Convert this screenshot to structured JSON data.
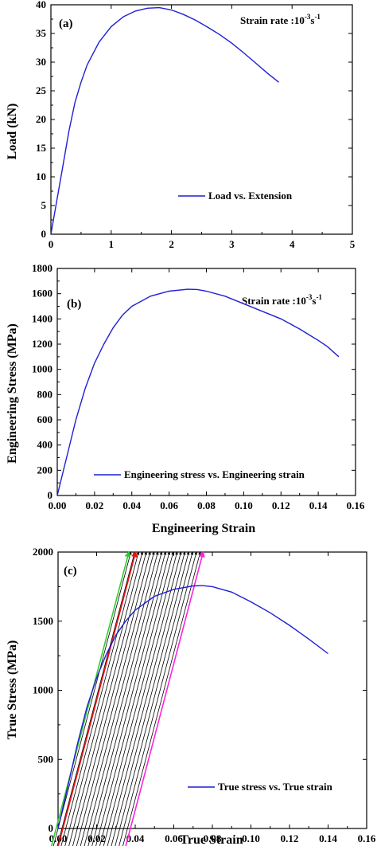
{
  "chart_data": [
    {
      "type": "line",
      "panel_label": "(a)",
      "annotation": "Strain rate :10",
      "annotation_exp": "-3",
      "annotation_unit": "s",
      "annotation_unit_exp": "-1",
      "xlabel": "",
      "ylabel": "Load (kN)",
      "xlim": [
        0,
        5
      ],
      "ylim": [
        0,
        40
      ],
      "xticks": [
        0,
        1,
        2,
        3,
        4,
        5
      ],
      "yticks": [
        0,
        5,
        10,
        15,
        20,
        25,
        30,
        35,
        40
      ],
      "legend_position": "lower-right",
      "series": [
        {
          "name": "Load vs. Extension",
          "color": "#1f1fd6",
          "x": [
            0,
            0.1,
            0.2,
            0.3,
            0.4,
            0.5,
            0.6,
            0.8,
            1.0,
            1.2,
            1.4,
            1.6,
            1.8,
            2.0,
            2.2,
            2.4,
            2.6,
            2.8,
            3.0,
            3.2,
            3.4,
            3.6,
            3.78
          ],
          "y": [
            0,
            6,
            12,
            18,
            23,
            26.5,
            29.5,
            33.5,
            36.2,
            37.9,
            38.9,
            39.4,
            39.5,
            39.1,
            38.3,
            37.3,
            36.1,
            34.8,
            33.3,
            31.6,
            29.8,
            28.0,
            26.5
          ]
        }
      ]
    },
    {
      "type": "line",
      "panel_label": "(b)",
      "annotation": "Strain rate :10",
      "annotation_exp": "-3",
      "annotation_unit": "s",
      "annotation_unit_exp": "-1",
      "xlabel": "Engineering Strain",
      "ylabel": "Engineering  Stress (MPa)",
      "xlim": [
        0,
        0.16
      ],
      "ylim": [
        0,
        1800
      ],
      "xticks": [
        "0.00",
        "0.02",
        "0.04",
        "0.06",
        "0.08",
        "0.10",
        "0.12",
        "0.14",
        "0.16"
      ],
      "yticks": [
        0,
        200,
        400,
        600,
        800,
        1000,
        1200,
        1400,
        1600,
        1800
      ],
      "legend_position": "lower-right",
      "series": [
        {
          "name": "Engineering stress vs. Engineering strain",
          "color": "#1f1fd6",
          "x": [
            0,
            0.005,
            0.01,
            0.015,
            0.02,
            0.025,
            0.03,
            0.035,
            0.04,
            0.05,
            0.06,
            0.07,
            0.075,
            0.08,
            0.09,
            0.1,
            0.11,
            0.12,
            0.13,
            0.14,
            0.145,
            0.151
          ],
          "y": [
            0,
            300,
            600,
            850,
            1050,
            1200,
            1330,
            1430,
            1500,
            1580,
            1620,
            1635,
            1633,
            1620,
            1580,
            1520,
            1460,
            1400,
            1320,
            1230,
            1180,
            1100
          ]
        }
      ]
    },
    {
      "type": "line",
      "panel_label": "(c)",
      "xlabel": "True Strain",
      "ylabel": "True Stress (MPa)",
      "xlim": [
        0,
        0.16
      ],
      "ylim": [
        0,
        2000
      ],
      "xticks": [
        "0.00",
        "0.02",
        "0.04",
        "0.06",
        "0.08",
        "0.10",
        "0.12",
        "0.14",
        "0.16"
      ],
      "yticks": [
        0,
        500,
        1000,
        1500,
        2000
      ],
      "legend_position": "lower-right",
      "series": [
        {
          "name": "True stress vs. True strain",
          "color": "#1f1fd6",
          "x": [
            0,
            0.005,
            0.01,
            0.015,
            0.02,
            0.025,
            0.03,
            0.035,
            0.04,
            0.05,
            0.06,
            0.07,
            0.075,
            0.08,
            0.09,
            0.1,
            0.11,
            0.12,
            0.13,
            0.14
          ],
          "y": [
            0,
            300,
            610,
            880,
            1090,
            1260,
            1400,
            1500,
            1580,
            1680,
            1730,
            1755,
            1757,
            1750,
            1710,
            1640,
            1560,
            1470,
            1370,
            1265
          ]
        }
      ],
      "unloading_lines": {
        "slope_mpa_per_strain": 53000,
        "black_offsets": [
          0.0,
          0.002,
          0.004,
          0.006,
          0.008,
          0.01,
          0.012,
          0.014,
          0.016,
          0.018,
          0.02,
          0.022,
          0.024,
          0.026,
          0.028,
          0.03,
          0.032,
          0.034,
          0.036
        ],
        "green_offset": -0.001,
        "red_offset": 0.0025,
        "magenta_offset": 0.0375,
        "colors": {
          "black": "#000000",
          "green": "#33cc33",
          "red": "#ee1111",
          "magenta": "#ff22dd"
        }
      }
    }
  ]
}
